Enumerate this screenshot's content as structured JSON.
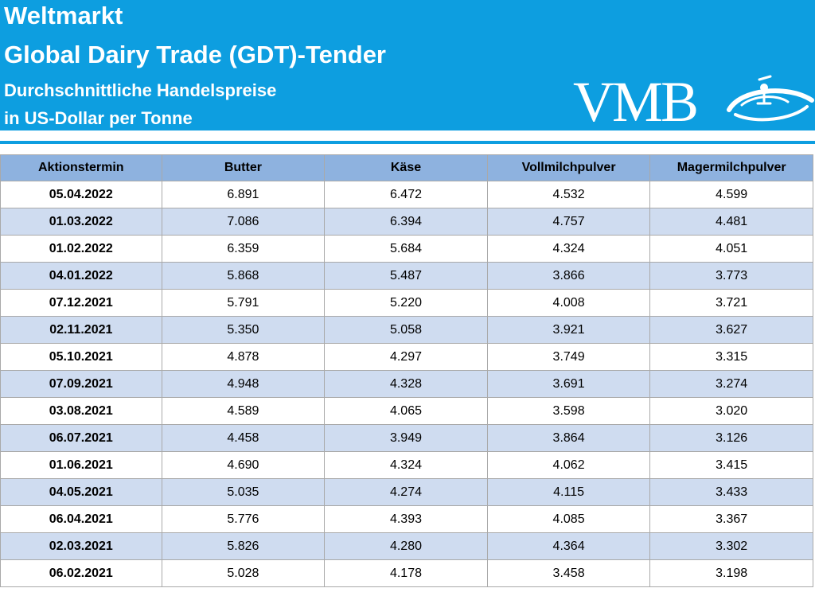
{
  "header": {
    "title": "Weltmarkt",
    "subtitle": "Global Dairy Trade (GDT)-Tender",
    "line3": "Durchschnittliche Handelspreise",
    "line4": "in US-Dollar per Tonne",
    "logo_text": "VMB",
    "background_color": "#0d9ee0"
  },
  "table": {
    "columns": [
      "Aktionstermin",
      "Butter",
      "Käse",
      "Vollmilchpulver",
      "Magermilchpulver"
    ],
    "rows": [
      [
        "05.04.2022",
        "6.891",
        "6.472",
        "4.532",
        "4.599"
      ],
      [
        "01.03.2022",
        "7.086",
        "6.394",
        "4.757",
        "4.481"
      ],
      [
        "01.02.2022",
        "6.359",
        "5.684",
        "4.324",
        "4.051"
      ],
      [
        "04.01.2022",
        "5.868",
        "5.487",
        "3.866",
        "3.773"
      ],
      [
        "07.12.2021",
        "5.791",
        "5.220",
        "4.008",
        "3.721"
      ],
      [
        "02.11.2021",
        "5.350",
        "5.058",
        "3.921",
        "3.627"
      ],
      [
        "05.10.2021",
        "4.878",
        "4.297",
        "3.749",
        "3.315"
      ],
      [
        "07.09.2021",
        "4.948",
        "4.328",
        "3.691",
        "3.274"
      ],
      [
        "03.08.2021",
        "4.589",
        "4.065",
        "3.598",
        "3.020"
      ],
      [
        "06.07.2021",
        "4.458",
        "3.949",
        "3.864",
        "3.126"
      ],
      [
        "01.06.2021",
        "4.690",
        "4.324",
        "4.062",
        "3.415"
      ],
      [
        "04.05.2021",
        "5.035",
        "4.274",
        "4.115",
        "3.433"
      ],
      [
        "06.04.2021",
        "5.776",
        "4.393",
        "4.085",
        "3.367"
      ],
      [
        "02.03.2021",
        "5.826",
        "4.280",
        "4.364",
        "3.302"
      ],
      [
        "06.02.2021",
        "5.028",
        "4.178",
        "3.458",
        "3.198"
      ]
    ],
    "header_color": "#8eb2df",
    "alt_row_color": "#cfdcf0"
  }
}
